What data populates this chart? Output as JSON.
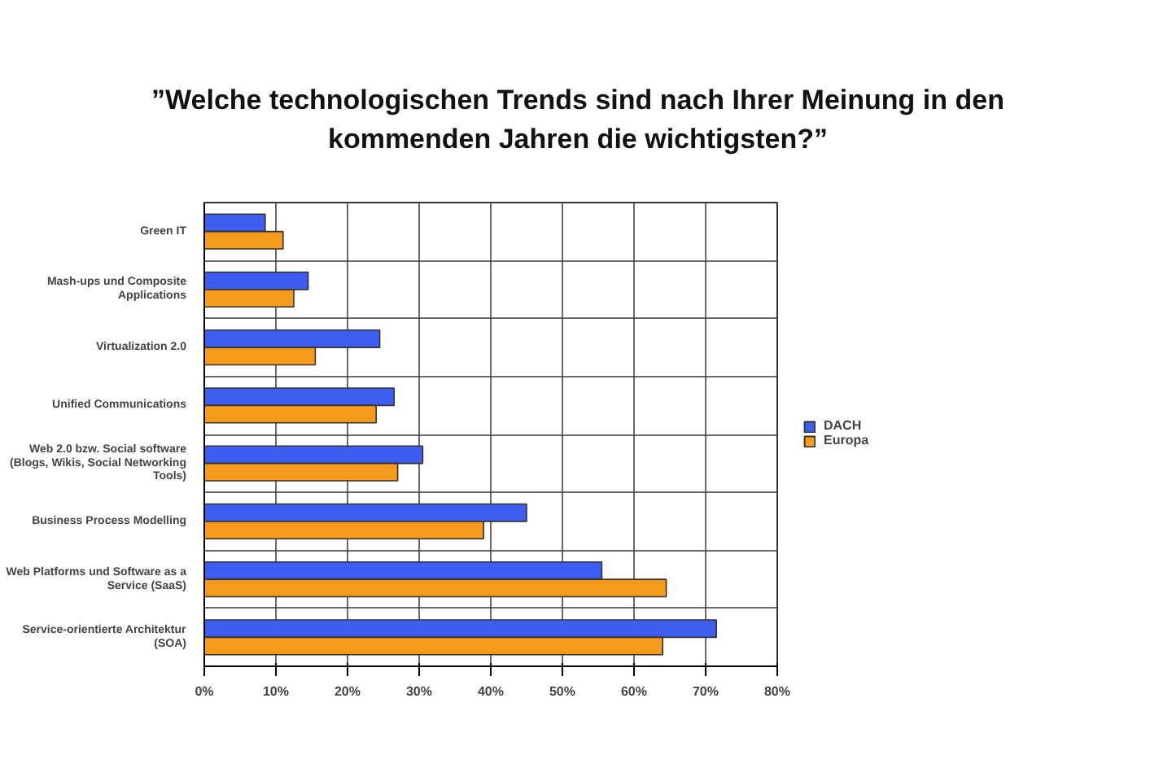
{
  "chart_data": {
    "type": "bar",
    "orientation": "horizontal",
    "title": "”Welche technologischen Trends sind nach Ihrer Meinung in den kommenden Jahren die wichtigsten?”",
    "categories": [
      "Green IT",
      "Mash-ups und Composite Applications",
      "Virtualization 2.0",
      "Unified Communications",
      "Web 2.0 bzw. Social software (Blogs, Wikis, Social Networking Tools)",
      "Business Process Modelling",
      "Web Platforms und Software as a Service (SaaS)",
      "Service-orientierte Architektur (SOA)"
    ],
    "series": [
      {
        "name": "DACH",
        "color": "#3d5ef0",
        "values": [
          8.5,
          14.5,
          24.5,
          26.5,
          30.5,
          45,
          55.5,
          71.5
        ]
      },
      {
        "name": "Europa",
        "color": "#f59a1b",
        "values": [
          11,
          12.5,
          15.5,
          24,
          27,
          39,
          64.5,
          64
        ]
      }
    ],
    "xlim": [
      0,
      80
    ],
    "xticks": [
      {
        "value": 0,
        "label": "0%"
      },
      {
        "value": 10,
        "label": "10%"
      },
      {
        "value": 20,
        "label": "20%"
      },
      {
        "value": 30,
        "label": "30%"
      },
      {
        "value": 40,
        "label": "40%"
      },
      {
        "value": 50,
        "label": "50%"
      },
      {
        "value": 60,
        "label": "60%"
      },
      {
        "value": 70,
        "label": "70%"
      },
      {
        "value": 80,
        "label": "80%"
      }
    ],
    "grid": true,
    "legend": "right"
  }
}
